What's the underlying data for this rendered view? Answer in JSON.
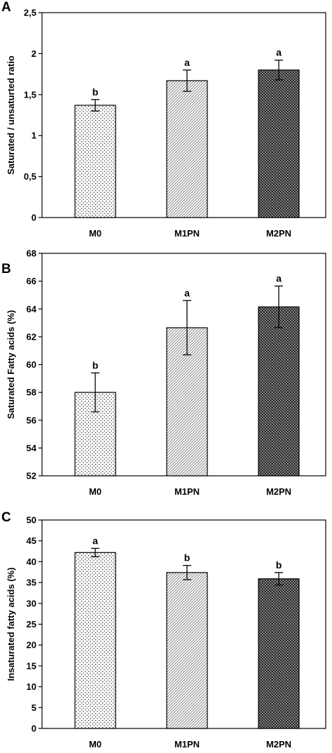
{
  "chart_data": [
    {
      "type": "bar",
      "panel": "A",
      "title": "",
      "xlabel": "",
      "ylabel": "Saturated / unsaturted ratio",
      "ylim": [
        0,
        2.5
      ],
      "yticks": [
        "0",
        "0,5",
        "1",
        "1,5",
        "2",
        "2,5"
      ],
      "categories": [
        "M0",
        "M1PN",
        "M2PN"
      ],
      "values": [
        1.37,
        1.67,
        1.8
      ],
      "errors": [
        0.07,
        0.13,
        0.12
      ],
      "significance": [
        "b",
        "a",
        "a"
      ],
      "grid": false,
      "patterns": [
        "dots",
        "diagonal",
        "checker"
      ]
    },
    {
      "type": "bar",
      "panel": "B",
      "title": "",
      "xlabel": "",
      "ylabel": "Saturated Fatty acids (%)",
      "ylim": [
        52,
        68
      ],
      "yticks": [
        "52",
        "54",
        "56",
        "58",
        "60",
        "62",
        "64",
        "66",
        "68"
      ],
      "categories": [
        "M0",
        "M1PN",
        "M2PN"
      ],
      "values": [
        58.0,
        62.65,
        64.15
      ],
      "errors": [
        1.4,
        1.95,
        1.5
      ],
      "significance": [
        "b",
        "a",
        "a"
      ],
      "grid": false,
      "patterns": [
        "dots",
        "diagonal",
        "checker"
      ]
    },
    {
      "type": "bar",
      "panel": "C",
      "title": "",
      "xlabel": "",
      "ylabel": "Insaturated fatty acids (%)",
      "ylim": [
        0,
        50
      ],
      "yticks": [
        "0",
        "5",
        "10",
        "15",
        "20",
        "25",
        "30",
        "35",
        "40",
        "45",
        "50"
      ],
      "categories": [
        "M0",
        "M1PN",
        "M2PN"
      ],
      "values": [
        42.2,
        37.4,
        35.9
      ],
      "errors": [
        1.0,
        1.7,
        1.5
      ],
      "significance": [
        "a",
        "b",
        "b"
      ],
      "grid": false,
      "patterns": [
        "dots",
        "diagonal",
        "checker"
      ]
    }
  ]
}
